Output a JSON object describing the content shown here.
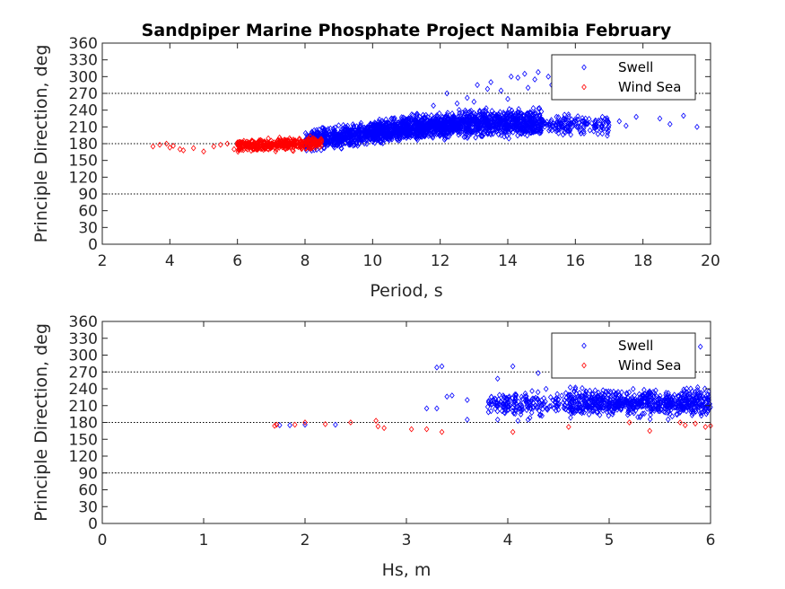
{
  "title": "Sandpiper Marine Phosphate Project Namibia February",
  "colors": {
    "swell": "#0000ff",
    "wind_sea": "#ff0000",
    "axis": "#262626"
  },
  "chart_data": [
    {
      "type": "scatter",
      "xlabel": "Period, s",
      "ylabel": "Principle Direction, deg",
      "xlim": [
        2,
        20
      ],
      "ylim": [
        0,
        360
      ],
      "xticks": [
        2,
        4,
        6,
        8,
        10,
        12,
        14,
        16,
        18,
        20
      ],
      "yticks": [
        0,
        30,
        60,
        90,
        120,
        150,
        180,
        210,
        240,
        270,
        300,
        330,
        360
      ],
      "reference_lines": [
        90,
        180,
        270
      ],
      "legend": {
        "entries": [
          "Swell",
          "Wind Sea"
        ],
        "placement": "top-right"
      },
      "series": [
        {
          "name": "Swell",
          "color": "#0000ff",
          "clusters": [
            {
              "x": [
                8,
                10
              ],
              "y_center": [
                185,
                200
              ],
              "y_spread": 12,
              "count": 500
            },
            {
              "x": [
                10,
                12.5
              ],
              "y_center": [
                200,
                215
              ],
              "y_spread": 14,
              "count": 900
            },
            {
              "x": [
                12.5,
                15
              ],
              "y_center": [
                215,
                218
              ],
              "y_spread": 15,
              "count": 700
            },
            {
              "x": [
                15,
                17
              ],
              "y_center": [
                215,
                212
              ],
              "y_spread": 12,
              "count": 150
            }
          ],
          "points": [
            [
              12.2,
              270
            ],
            [
              12.8,
              262
            ],
            [
              13.1,
              285
            ],
            [
              13.4,
              278
            ],
            [
              13.5,
              290
            ],
            [
              13.8,
              275
            ],
            [
              14.1,
              300
            ],
            [
              14.3,
              298
            ],
            [
              14.5,
              305
            ],
            [
              14.6,
              280
            ],
            [
              14.8,
              295
            ],
            [
              14.9,
              308
            ],
            [
              15.2,
              300
            ],
            [
              15.3,
              285
            ],
            [
              12.5,
              252
            ],
            [
              11.8,
              248
            ],
            [
              13.0,
              255
            ],
            [
              14.0,
              260
            ],
            [
              16.3,
              225
            ],
            [
              16.8,
              228
            ],
            [
              17.3,
              220
            ],
            [
              17.8,
              228
            ],
            [
              18.5,
              225
            ],
            [
              19.2,
              230
            ],
            [
              19.6,
              210
            ],
            [
              18.8,
              215
            ],
            [
              17.5,
              212
            ]
          ]
        },
        {
          "name": "Wind Sea",
          "color": "#ff0000",
          "clusters": [
            {
              "x": [
                6,
                8.5
              ],
              "y_center": [
                175,
                182
              ],
              "y_spread": 7,
              "count": 400
            }
          ],
          "points": [
            [
              3.5,
              175
            ],
            [
              3.7,
              178
            ],
            [
              3.9,
              180
            ],
            [
              4.0,
              173
            ],
            [
              4.1,
              176
            ],
            [
              4.3,
              170
            ],
            [
              4.4,
              168
            ],
            [
              4.7,
              172
            ],
            [
              5.0,
              166
            ],
            [
              5.3,
              175
            ],
            [
              5.5,
              178
            ],
            [
              5.7,
              180
            ],
            [
              5.9,
              170
            ]
          ]
        }
      ]
    },
    {
      "type": "scatter",
      "xlabel": "Hs, m",
      "ylabel": "Principle Direction, deg",
      "xlim": [
        0,
        6
      ],
      "ylim": [
        0,
        360
      ],
      "xticks": [
        0,
        1,
        2,
        3,
        4,
        5,
        6
      ],
      "yticks": [
        0,
        30,
        60,
        90,
        120,
        150,
        180,
        210,
        240,
        270,
        300,
        330,
        360
      ],
      "reference_lines": [
        90,
        180,
        270
      ],
      "legend": {
        "entries": [
          "Swell",
          "Wind Sea"
        ],
        "placement": "top-right"
      },
      "series": [
        {
          "name": "Swell",
          "color": "#0000ff",
          "clusters": [
            {
              "x": [
                3.8,
                4.6
              ],
              "y_center": [
                212,
                215
              ],
              "y_spread": 14,
              "count": 180
            },
            {
              "x": [
                4.6,
                6
              ],
              "y_center": [
                215,
                215
              ],
              "y_spread": 15,
              "count": 700
            }
          ],
          "points": [
            [
              1.75,
              175
            ],
            [
              1.85,
              175
            ],
            [
              2.0,
              176
            ],
            [
              2.3,
              176
            ],
            [
              3.3,
              278
            ],
            [
              3.35,
              280
            ],
            [
              3.2,
              205
            ],
            [
              3.3,
              205
            ],
            [
              3.4,
              226
            ],
            [
              3.45,
              228
            ],
            [
              3.6,
              220
            ],
            [
              3.9,
              258
            ],
            [
              4.05,
              280
            ],
            [
              4.2,
              185
            ],
            [
              4.5,
              300
            ],
            [
              4.6,
              300
            ],
            [
              4.3,
              268
            ],
            [
              5.1,
              310
            ],
            [
              5.9,
              315
            ],
            [
              5.7,
              298
            ],
            [
              3.6,
              185
            ],
            [
              3.9,
              185
            ],
            [
              4.1,
              183
            ]
          ]
        },
        {
          "name": "Wind Sea",
          "color": "#ff0000",
          "points": [
            [
              1.7,
              174
            ],
            [
              1.72,
              176
            ],
            [
              1.9,
              176
            ],
            [
              2.0,
              180
            ],
            [
              2.2,
              177
            ],
            [
              2.45,
              180
            ],
            [
              2.7,
              183
            ],
            [
              2.72,
              173
            ],
            [
              2.78,
              170
            ],
            [
              3.05,
              168
            ],
            [
              3.2,
              168
            ],
            [
              3.35,
              163
            ],
            [
              4.05,
              163
            ],
            [
              5.2,
              180
            ],
            [
              5.7,
              180
            ],
            [
              5.75,
              175
            ],
            [
              5.85,
              178
            ],
            [
              5.95,
              172
            ],
            [
              6.0,
              174
            ],
            [
              4.6,
              172
            ],
            [
              5.4,
              165
            ]
          ]
        }
      ]
    }
  ]
}
